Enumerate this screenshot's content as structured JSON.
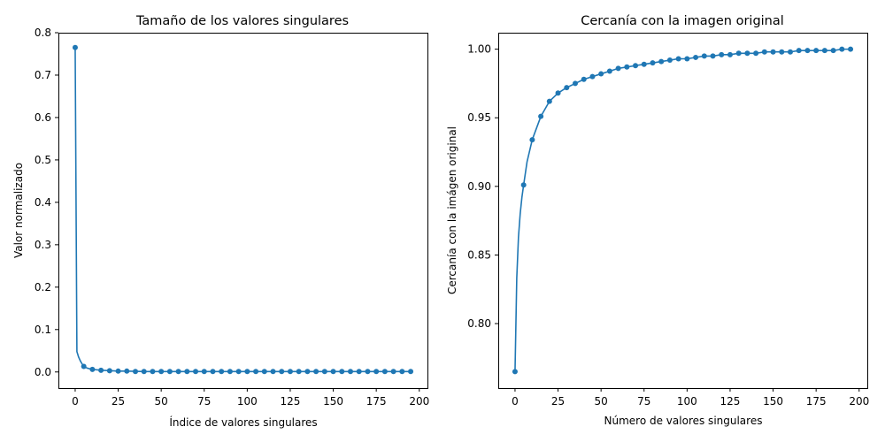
{
  "chart_data": [
    {
      "type": "line",
      "title": "Tamaño de los valores singulares",
      "xlabel": "Índice de valores singulares",
      "ylabel": "Valor normalizado",
      "xlim": [
        -9.75,
        204.75
      ],
      "ylim": [
        -0.038,
        0.8
      ],
      "xticks": [
        0,
        25,
        50,
        75,
        100,
        125,
        150,
        175,
        200
      ],
      "yticks": [
        0.0,
        0.1,
        0.2,
        0.3,
        0.4,
        0.5,
        0.6,
        0.7,
        0.8
      ],
      "ytick_labels": [
        "0.0",
        "0.1",
        "0.2",
        "0.3",
        "0.4",
        "0.5",
        "0.6",
        "0.7",
        "0.8"
      ],
      "grid": false,
      "series": [
        {
          "color": "#1f77b4",
          "line": {
            "x": [
              0,
              1,
              2,
              3,
              4,
              5,
              7,
              10,
              15,
              20,
              25,
              30,
              40,
              60,
              100,
              150,
              195
            ],
            "y": [
              0.765,
              0.048,
              0.035,
              0.026,
              0.019,
              0.013,
              0.009,
              0.006,
              0.004,
              0.003,
              0.002,
              0.002,
              0.001,
              0.001,
              0.001,
              0.001,
              0.001
            ]
          },
          "markers": {
            "x": [
              0,
              5,
              10,
              15,
              20,
              25,
              30,
              35,
              40,
              45,
              50,
              55,
              60,
              65,
              70,
              75,
              80,
              85,
              90,
              95,
              100,
              105,
              110,
              115,
              120,
              125,
              130,
              135,
              140,
              145,
              150,
              155,
              160,
              165,
              170,
              175,
              180,
              185,
              190,
              195
            ],
            "y": [
              0.765,
              0.013,
              0.006,
              0.004,
              0.003,
              0.002,
              0.002,
              0.001,
              0.001,
              0.001,
              0.001,
              0.001,
              0.001,
              0.001,
              0.001,
              0.001,
              0.001,
              0.001,
              0.001,
              0.001,
              0.001,
              0.001,
              0.001,
              0.001,
              0.001,
              0.001,
              0.001,
              0.001,
              0.001,
              0.001,
              0.001,
              0.001,
              0.001,
              0.001,
              0.001,
              0.001,
              0.001,
              0.001,
              0.001,
              0.001
            ]
          }
        }
      ]
    },
    {
      "type": "line",
      "title": "Cercanía con la imagen original",
      "xlabel": "Número de valores singulares",
      "ylabel": "Cercanía con la imágen original",
      "xlim": [
        -9.75,
        204.75
      ],
      "ylim": [
        0.753,
        1.012
      ],
      "xticks": [
        0,
        25,
        50,
        75,
        100,
        125,
        150,
        175,
        200
      ],
      "yticks": [
        0.8,
        0.85,
        0.9,
        0.95,
        1.0
      ],
      "ytick_labels": [
        "0.80",
        "0.85",
        "0.90",
        "0.95",
        "1.00"
      ],
      "grid": false,
      "series": [
        {
          "color": "#1f77b4",
          "line": {
            "x": [
              0,
              1,
              2,
              3,
              4,
              5,
              7,
              10,
              15,
              20,
              25,
              30,
              35,
              40,
              45,
              50,
              55,
              60,
              65,
              70,
              75,
              80,
              85,
              90,
              95,
              100,
              105,
              110,
              115,
              120,
              125,
              130,
              135,
              140,
              145,
              150,
              155,
              160,
              165,
              170,
              175,
              180,
              185,
              190,
              195
            ],
            "y": [
              0.765,
              0.833,
              0.863,
              0.88,
              0.892,
              0.901,
              0.918,
              0.934,
              0.951,
              0.962,
              0.968,
              0.972,
              0.975,
              0.978,
              0.98,
              0.982,
              0.984,
              0.986,
              0.987,
              0.988,
              0.989,
              0.99,
              0.991,
              0.992,
              0.993,
              0.993,
              0.994,
              0.995,
              0.995,
              0.996,
              0.996,
              0.997,
              0.997,
              0.997,
              0.998,
              0.998,
              0.998,
              0.998,
              0.999,
              0.999,
              0.999,
              0.999,
              0.999,
              1.0,
              1.0
            ]
          },
          "markers": {
            "x": [
              0,
              5,
              10,
              15,
              20,
              25,
              30,
              35,
              40,
              45,
              50,
              55,
              60,
              65,
              70,
              75,
              80,
              85,
              90,
              95,
              100,
              105,
              110,
              115,
              120,
              125,
              130,
              135,
              140,
              145,
              150,
              155,
              160,
              165,
              170,
              175,
              180,
              185,
              190,
              195
            ],
            "y": [
              0.765,
              0.901,
              0.934,
              0.951,
              0.962,
              0.968,
              0.972,
              0.975,
              0.978,
              0.98,
              0.982,
              0.984,
              0.986,
              0.987,
              0.988,
              0.989,
              0.99,
              0.991,
              0.992,
              0.993,
              0.993,
              0.994,
              0.995,
              0.995,
              0.996,
              0.996,
              0.997,
              0.997,
              0.997,
              0.998,
              0.998,
              0.998,
              0.998,
              0.999,
              0.999,
              0.999,
              0.999,
              0.999,
              1.0,
              1.0
            ]
          }
        }
      ]
    }
  ]
}
